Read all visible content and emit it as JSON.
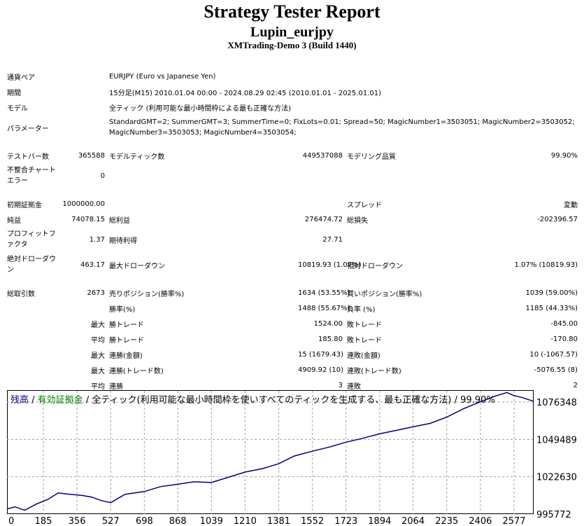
{
  "header": {
    "title": "Strategy Tester Report",
    "subtitle": "Lupin_eurjpy",
    "build": "XMTrading-Demo 3 (Build 1440)"
  },
  "info": {
    "pair_label": "通貨ペア",
    "pair_value": "EURJPY (Euro vs Japanese Yen)",
    "period_label": "期間",
    "period_value": "15分足(M15) 2010.01.04 00:00 - 2024.08.29 02:45 (2010.01.01 - 2025.01.01)",
    "model_label": "モデル",
    "model_value": "全ティック (利用可能な最小時間枠による最も正確な方法)",
    "params_label": "パラメーター",
    "params_line1": "StandardGMT=2; SummerGMT=3; SummerTime=0; FixLots=0.01; Spread=50; MagicNumber1=3503051; MagicNumber2=3503052;",
    "params_line2": "MagicNumber3=3503053; MagicNumber4=3503054;"
  },
  "stats": {
    "bars_label": "テストバー数",
    "bars_value": "365588",
    "ticks_label": "モデルティック数",
    "ticks_value": "449537088",
    "quality_label": "モデリング品質",
    "quality_value": "99.90%",
    "mismatch_label": "不整合チャートエラー",
    "mismatch_value": "0",
    "deposit_label": "初期証拠金",
    "deposit_value": "1000000.00",
    "spread_label": "スプレッド",
    "spread_value": "変動",
    "net_label": "純益",
    "net_value": "74078.15",
    "gross_profit_label": "総利益",
    "gross_profit_value": "276474.72",
    "gross_loss_label": "総損失",
    "gross_loss_value": "-202396.57",
    "pf_label": "プロフィットファクタ",
    "pf_value": "1.37",
    "expected_label": "期待利得",
    "expected_value": "27.71",
    "abs_dd_label": "絶対ドローダウン",
    "abs_dd_value": "463.17",
    "max_dd_label": "最大ドローダウン",
    "max_dd_value": "10819.93 (1.07%)",
    "rel_dd_label": "相対ドローダウン",
    "rel_dd_value": "1.07% (10819.93)",
    "total_trades_label": "総取引数",
    "total_trades_value": "2673",
    "short_label": "売りポジション(勝率%)",
    "short_value": "1634 (53.55%)",
    "long_label": "買いポジション(勝率%)",
    "long_value": "1039 (59.00%)",
    "winrate_label": "勝率(%)",
    "winrate_value": "1488 (55.67%)",
    "lossrate_label": "負率 (%)",
    "lossrate_value": "1185 (44.33%)",
    "max_label": "最大",
    "avg_label": "平均",
    "max_win_label": "勝トレード",
    "max_win_value": "1524.00",
    "max_loss_label": "敗トレード",
    "max_loss_value": "-845.00",
    "avg_win_label": "勝トレード",
    "avg_win_value": "185.80",
    "avg_loss_label": "敗トレード",
    "avg_loss_value": "-170.80",
    "cons_win_amt_label": "連勝(金額)",
    "cons_win_amt_value": "15 (1679.43)",
    "cons_loss_amt_label": "連敗(金額)",
    "cons_loss_amt_value": "10 (-1067.57)",
    "cons_win_trades_label": "連勝(トレード数)",
    "cons_win_trades_value": "4909.92 (10)",
    "cons_loss_trades_label": "連敗(トレード数)",
    "cons_loss_trades_value": "-5076.55 (8)",
    "avg_cons_win_label": "連勝",
    "avg_cons_win_value": "3",
    "avg_cons_loss_label": "連敗",
    "avg_cons_loss_value": "2"
  },
  "chart_data": {
    "type": "line",
    "legend_balance": "残高",
    "legend_sep1": " / ",
    "legend_equity": "有効証拠金",
    "legend_sep2": " / ",
    "legend_model": "全ティック(利用可能な最小時間枠を使いすべてのティックを生成する、最も正確な方法)",
    "legend_sep3": " / ",
    "legend_quality": "99.90%",
    "legend_balance_color": "#000080",
    "legend_equity_color": "#008000",
    "line_color": "#000080",
    "ylim": [
      995772,
      1084400
    ],
    "xlim": [
      0,
      2673
    ],
    "yticks": [
      "1076348",
      "1049489",
      "1022630",
      "995772"
    ],
    "ytick_values": [
      1076348,
      1049489,
      1022630,
      995772
    ],
    "xticks": [
      "0",
      "185",
      "356",
      "527",
      "698",
      "868",
      "1039",
      "1210",
      "1381",
      "1552",
      "1723",
      "1894",
      "2064",
      "2235",
      "2406",
      "2577"
    ],
    "xtick_values": [
      0,
      185,
      356,
      527,
      698,
      868,
      1039,
      1210,
      1381,
      1552,
      1723,
      1894,
      2064,
      2235,
      2406,
      2577
    ],
    "grid": true,
    "series": [
      {
        "x": [
          0,
          40,
          90,
          150,
          210,
          260,
          320,
          380,
          430,
          480,
          527,
          600,
          698,
          780,
          868,
          950,
          1039,
          1120,
          1210,
          1300,
          1381,
          1460,
          1552,
          1640,
          1723,
          1800,
          1894,
          1980,
          2064,
          2150,
          2235,
          2320,
          2406,
          2480,
          2540,
          2577,
          2620,
          2673
        ],
        "y": [
          999500,
          1001000,
          998600,
          1003000,
          1006500,
          1011000,
          1010000,
          1009200,
          1008000,
          1005500,
          1004000,
          1010000,
          1012000,
          1015500,
          1017200,
          1019000,
          1018500,
          1022000,
          1026000,
          1028500,
          1032000,
          1037500,
          1041000,
          1044000,
          1047500,
          1050000,
          1053500,
          1056000,
          1058500,
          1061000,
          1065500,
          1071500,
          1076500,
          1080500,
          1083200,
          1081000,
          1079500,
          1077000
        ]
      }
    ]
  }
}
